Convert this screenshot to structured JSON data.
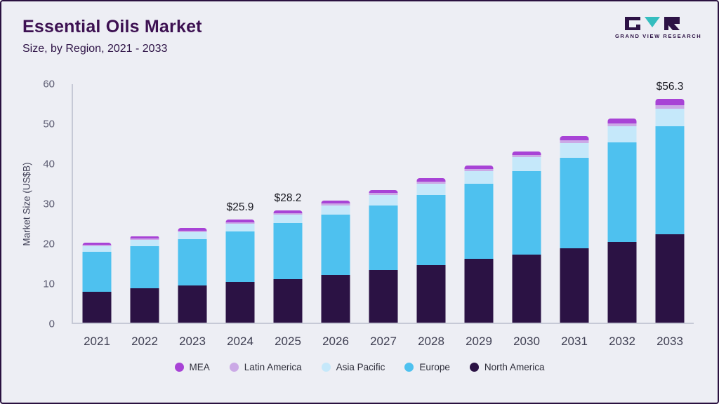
{
  "header": {
    "title": "Essential Oils Market",
    "subtitle": "Size, by Region, 2021 - 2033",
    "logo_text": "GRAND VIEW RESEARCH"
  },
  "colors": {
    "background": "#edeef4",
    "frame_border": "#2a1140",
    "title": "#3d1152",
    "axis": "#c6c9d6"
  },
  "chart_data": {
    "type": "bar",
    "stacked": true,
    "title": "Essential Oils Market Size, by Region, 2021 - 2033",
    "xlabel": "",
    "ylabel": "Market Size (US$B)",
    "ylim": [
      0,
      60
    ],
    "yticks": [
      0,
      10,
      20,
      30,
      40,
      50,
      60
    ],
    "grid": false,
    "legend_position": "bottom",
    "categories": [
      "2021",
      "2022",
      "2023",
      "2024",
      "2025",
      "2026",
      "2027",
      "2028",
      "2029",
      "2030",
      "2031",
      "2032",
      "2033"
    ],
    "series": [
      {
        "name": "North America",
        "color": "#2b1244",
        "values": [
          7.8,
          8.6,
          9.3,
          10.2,
          11.0,
          12.0,
          13.2,
          14.5,
          16.0,
          17.1,
          18.7,
          20.3,
          22.2
        ]
      },
      {
        "name": "Europe",
        "color": "#4ec1ef",
        "values": [
          10.0,
          10.7,
          11.7,
          12.8,
          14.0,
          15.2,
          16.3,
          17.7,
          19.0,
          21.1,
          22.8,
          25.0,
          27.2
        ]
      },
      {
        "name": "Asia Pacific",
        "color": "#c5e8fa",
        "values": [
          1.5,
          1.6,
          1.8,
          1.9,
          2.1,
          2.3,
          2.6,
          2.8,
          3.1,
          3.4,
          3.7,
          4.1,
          4.5
        ]
      },
      {
        "name": "Latin America",
        "color": "#cba9e6",
        "values": [
          0.3,
          0.3,
          0.4,
          0.4,
          0.4,
          0.5,
          0.5,
          0.5,
          0.5,
          0.6,
          0.7,
          0.7,
          0.9
        ]
      },
      {
        "name": "MEA",
        "color": "#a843d6",
        "values": [
          0.6,
          0.6,
          0.6,
          0.6,
          0.7,
          0.7,
          0.8,
          0.8,
          0.9,
          0.9,
          1.1,
          1.3,
          1.5
        ]
      }
    ],
    "bar_labels": {
      "2024": "$25.9",
      "2025": "$28.2",
      "2033": "$56.3"
    },
    "totals": [
      20.2,
      21.8,
      23.8,
      25.9,
      28.2,
      30.7,
      33.4,
      36.3,
      39.5,
      43.1,
      47.0,
      51.4,
      56.3
    ],
    "legend_order": [
      "MEA",
      "Latin America",
      "Asia Pacific",
      "Europe",
      "North America"
    ]
  }
}
